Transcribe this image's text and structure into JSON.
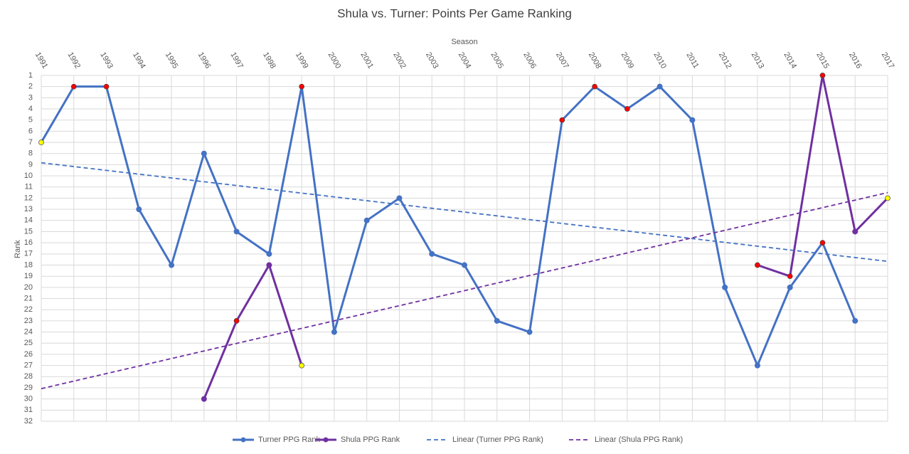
{
  "chart_data": {
    "type": "line",
    "title": "Shula vs. Turner: Points Per Game Ranking",
    "x_label": "Season",
    "y_label": "Rank",
    "x": [
      1991,
      1992,
      1993,
      1994,
      1995,
      1996,
      1997,
      1998,
      1999,
      2000,
      2001,
      2002,
      2003,
      2004,
      2005,
      2006,
      2007,
      2008,
      2009,
      2010,
      2011,
      2012,
      2013,
      2014,
      2015,
      2016,
      2017
    ],
    "xlim": [
      1991,
      2017
    ],
    "xticks": [
      1991,
      1992,
      1993,
      1994,
      1995,
      1996,
      1997,
      1998,
      1999,
      2000,
      2001,
      2002,
      2003,
      2004,
      2005,
      2006,
      2007,
      2008,
      2009,
      2010,
      2011,
      2012,
      2013,
      2014,
      2015,
      2016,
      2017
    ],
    "ylim": [
      1,
      32
    ],
    "y_inverted": true,
    "yticks": [
      1,
      2,
      3,
      4,
      5,
      6,
      7,
      8,
      9,
      10,
      11,
      12,
      13,
      14,
      15,
      16,
      17,
      18,
      19,
      20,
      21,
      22,
      23,
      24,
      25,
      26,
      27,
      28,
      29,
      30,
      31,
      32
    ],
    "grid": true,
    "x_axis_position": "top",
    "legend": "bottom",
    "series": [
      {
        "name": "Turner PPG Rank",
        "color": "#4472c4",
        "values": [
          7,
          2,
          2,
          13,
          18,
          8,
          15,
          17,
          2,
          24,
          14,
          12,
          17,
          18,
          23,
          24,
          5,
          2,
          4,
          2,
          5,
          20,
          27,
          20,
          16,
          23,
          null
        ],
        "marker_colors": [
          "#ffff00",
          "#ff0000",
          "#ff0000",
          null,
          null,
          null,
          null,
          null,
          "#ff0000",
          null,
          null,
          null,
          null,
          null,
          null,
          null,
          "#ff0000",
          "#ff0000",
          "#ff0000",
          null,
          null,
          null,
          null,
          null,
          "#ff0000",
          null,
          null
        ]
      },
      {
        "name": "Shula PPG Rank",
        "color": "#7030a0",
        "values": [
          null,
          null,
          null,
          null,
          null,
          30,
          23,
          18,
          27,
          null,
          null,
          null,
          null,
          null,
          null,
          null,
          null,
          null,
          null,
          null,
          null,
          null,
          18,
          19,
          1,
          15,
          12
        ],
        "marker_colors": [
          null,
          null,
          null,
          null,
          null,
          null,
          "#ff0000",
          null,
          "#ffff00",
          null,
          null,
          null,
          null,
          null,
          null,
          null,
          null,
          null,
          null,
          null,
          null,
          null,
          "#ff0000",
          "#ff0000",
          "#ff0000",
          null,
          "#ffff00"
        ]
      },
      {
        "name": "Linear (Turner PPG Rank)",
        "color": "#4472c4",
        "trendline_of": 0
      },
      {
        "name": "Linear (Shula PPG Rank)",
        "color": "#7030a0",
        "trendline_of": 1
      }
    ]
  }
}
